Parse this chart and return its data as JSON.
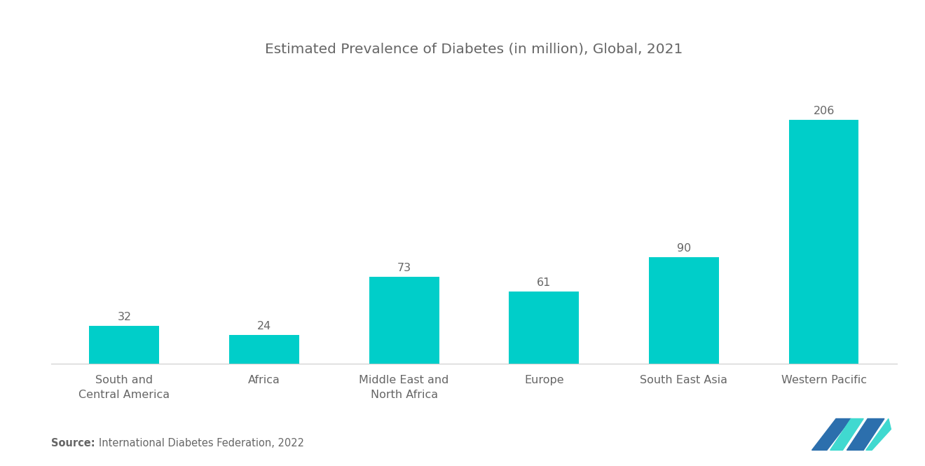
{
  "title": "Estimated Prevalence of Diabetes (in million), Global, 2021",
  "categories": [
    "South and\nCentral America",
    "Africa",
    "Middle East and\nNorth Africa",
    "Europe",
    "South East Asia",
    "Western Pacific"
  ],
  "values": [
    32,
    24,
    73,
    61,
    90,
    206
  ],
  "bar_color": "#00CEC9",
  "value_labels": [
    "32",
    "24",
    "73",
    "61",
    "90",
    "206"
  ],
  "source_bold": "Source:",
  "source_text": "International Diabetes Federation, 2022",
  "title_fontsize": 14.5,
  "label_fontsize": 11.5,
  "value_fontsize": 11.5,
  "source_fontsize": 10.5,
  "background_color": "#ffffff",
  "text_color": "#666666",
  "ylim": [
    0,
    250
  ],
  "logo_blue": "#2c6fad",
  "logo_teal": "#40d9d0"
}
